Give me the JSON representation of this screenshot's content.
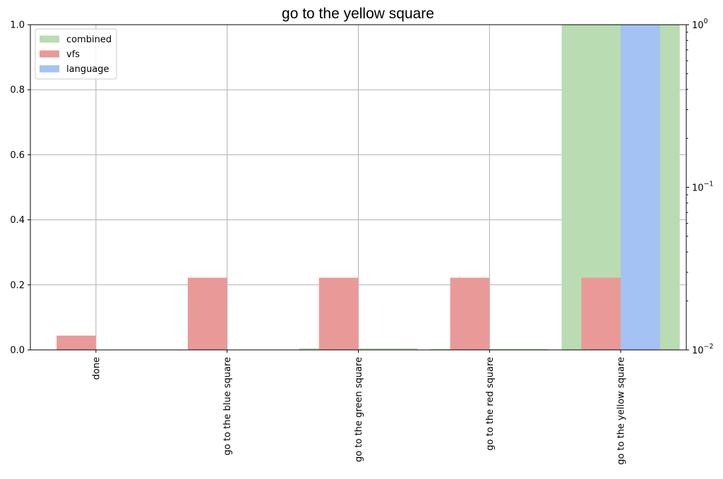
{
  "chart_data": {
    "type": "bar",
    "title": "go to the yellow square",
    "categories": [
      "done",
      "go to the blue square",
      "go to the green square",
      "go to the red square",
      "go to the yellow square"
    ],
    "series": [
      {
        "name": "combined",
        "color": "#b9dcb2",
        "values": [
          0.0,
          0.0,
          0.005,
          0.003,
          1.0
        ]
      },
      {
        "name": "vfs",
        "color": "#e99a98",
        "values": [
          0.044,
          0.222,
          0.222,
          0.222,
          0.222
        ]
      },
      {
        "name": "language",
        "color": "#a4c2f4",
        "values": [
          0.0,
          0.0,
          0.0,
          0.0,
          1.0
        ]
      }
    ],
    "xlabel": "",
    "ylabel": "",
    "ylim": [
      0,
      1.0
    ],
    "yticks": [
      "0.0",
      "0.2",
      "0.4",
      "0.6",
      "0.8",
      "1.0"
    ],
    "secondary_axis": {
      "scale": "log",
      "ylim": [
        0.01,
        1.0
      ],
      "major_ticks": [
        {
          "base": "10",
          "exp": "0"
        },
        {
          "base": "10",
          "exp": "−1"
        },
        {
          "base": "10",
          "exp": "−2"
        }
      ]
    },
    "grid": true,
    "legend_position": "top-left"
  }
}
